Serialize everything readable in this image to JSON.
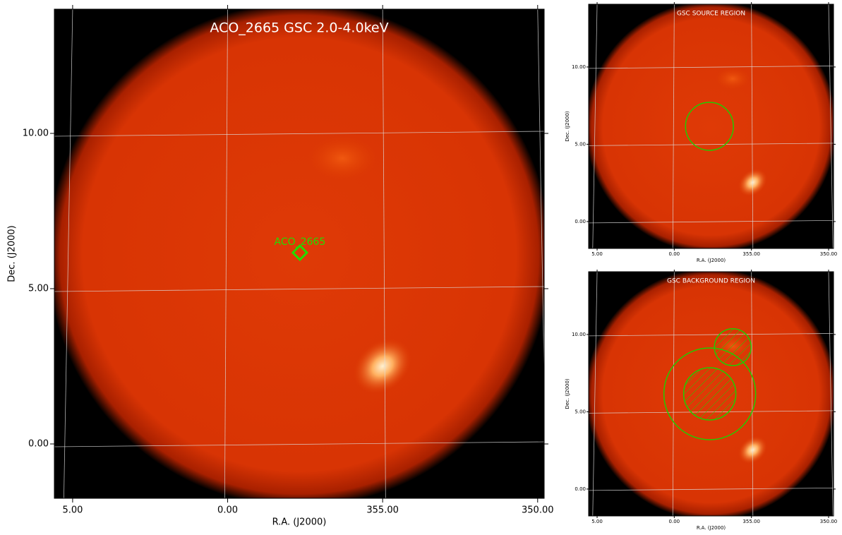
{
  "chart_data": [
    {
      "type": "image",
      "title": "ACO_2665 GSC 2.0-4.0keV",
      "x_label": "R.A. (J2000)",
      "y_label": "Dec. (J2000)",
      "xlim": [
        5.59,
        349.79
      ],
      "ylim": [
        -1.75,
        14.0
      ],
      "xticks": [
        {
          "value": 5,
          "label": "5.00"
        },
        {
          "value": 0,
          "label": "0.00"
        },
        {
          "value": 355,
          "label": "355.00"
        },
        {
          "value": 350,
          "label": "350.00"
        }
      ],
      "yticks": [
        {
          "value": 0,
          "label": "0.00"
        },
        {
          "value": 5,
          "label": "5.00"
        },
        {
          "value": 10,
          "label": "10.00"
        }
      ],
      "grid": true,
      "markers": [
        {
          "label": "ACO_2665",
          "ra": 357.67,
          "dec": 6.16,
          "color": "#22dd00"
        }
      ]
    },
    {
      "type": "image",
      "title": "GSC SOURCE REGION",
      "x_label": "R.A. (J2000)",
      "y_label": "Dec. (J2000)",
      "xlim": [
        5.55,
        349.68
      ],
      "ylim": [
        -1.74,
        14.06
      ],
      "xticks": [
        {
          "value": 5,
          "label": "5.00"
        },
        {
          "value": 0,
          "label": "0.00"
        },
        {
          "value": 355,
          "label": "355.00"
        },
        {
          "value": 350,
          "label": "350.00"
        }
      ],
      "yticks": [
        {
          "value": 0,
          "label": "0.00"
        },
        {
          "value": 5,
          "label": "5.00"
        },
        {
          "value": 10,
          "label": "10.00"
        }
      ],
      "grid": true,
      "regions": [
        {
          "ra": 357.72,
          "dec": 6.16,
          "radius": 1.55,
          "hatched": false,
          "color": "#22cc00"
        }
      ]
    },
    {
      "type": "image",
      "title": "GSC BACKGROUND REGION",
      "x_label": "R.A. (J2000)",
      "y_label": "Dec. (J2000)",
      "xlim": [
        5.55,
        349.68
      ],
      "ylim": [
        -1.74,
        14.06
      ],
      "xticks": [
        {
          "value": 5,
          "label": "5.00"
        },
        {
          "value": 0,
          "label": "0.00"
        },
        {
          "value": 355,
          "label": "355.00"
        },
        {
          "value": 350,
          "label": "350.00"
        }
      ],
      "yticks": [
        {
          "value": 0,
          "label": "0.00"
        },
        {
          "value": 5,
          "label": "5.00"
        },
        {
          "value": 10,
          "label": "10.00"
        }
      ],
      "grid": true,
      "regions": [
        {
          "ra": 357.7,
          "dec": 6.16,
          "radius": 2.97,
          "hatched": false,
          "color": "#22cc00"
        },
        {
          "ra": 357.7,
          "dec": 6.16,
          "radius": 1.69,
          "hatched": true,
          "color": "#22cc00"
        },
        {
          "ra": 356.21,
          "dec": 9.18,
          "radius": 1.19,
          "hatched": true,
          "color": "#22cc00"
        }
      ]
    }
  ]
}
